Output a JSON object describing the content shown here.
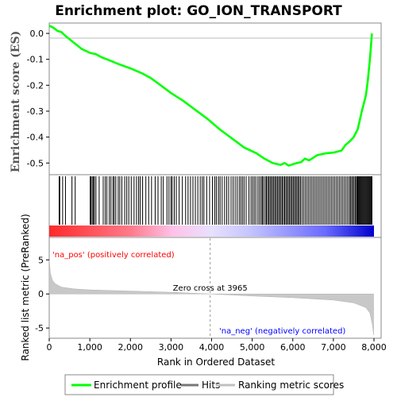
{
  "chart_data": {
    "type": "line",
    "title": "Enrichment plot: GO_ION_TRANSPORT",
    "es_panel": {
      "ylabel": "Enrichment score (ES)",
      "yticks": [
        "0.0",
        "-0.1",
        "-0.2",
        "-0.3",
        "-0.4",
        "-0.5"
      ],
      "ylim": [
        -0.545,
        0.04
      ],
      "series": [
        {
          "name": "Enrichment profile",
          "color": "#00ff00",
          "points": [
            [
              0,
              0.03
            ],
            [
              120,
              0.02
            ],
            [
              200,
              0.01
            ],
            [
              300,
              0.005
            ],
            [
              400,
              -0.01
            ],
            [
              600,
              -0.035
            ],
            [
              800,
              -0.06
            ],
            [
              1000,
              -0.075
            ],
            [
              1150,
              -0.08
            ],
            [
              1300,
              -0.093
            ],
            [
              1500,
              -0.105
            ],
            [
              1700,
              -0.118
            ],
            [
              2000,
              -0.135
            ],
            [
              2300,
              -0.155
            ],
            [
              2500,
              -0.172
            ],
            [
              2700,
              -0.195
            ],
            [
              3000,
              -0.23
            ],
            [
              3300,
              -0.26
            ],
            [
              3600,
              -0.295
            ],
            [
              3900,
              -0.33
            ],
            [
              4200,
              -0.37
            ],
            [
              4500,
              -0.405
            ],
            [
              4800,
              -0.44
            ],
            [
              5100,
              -0.462
            ],
            [
              5300,
              -0.483
            ],
            [
              5500,
              -0.5
            ],
            [
              5700,
              -0.507
            ],
            [
              5800,
              -0.5
            ],
            [
              5900,
              -0.51
            ],
            [
              6100,
              -0.5
            ],
            [
              6200,
              -0.497
            ],
            [
              6300,
              -0.483
            ],
            [
              6400,
              -0.49
            ],
            [
              6500,
              -0.48
            ],
            [
              6600,
              -0.47
            ],
            [
              6800,
              -0.463
            ],
            [
              7000,
              -0.46
            ],
            [
              7200,
              -0.452
            ],
            [
              7300,
              -0.43
            ],
            [
              7400,
              -0.417
            ],
            [
              7500,
              -0.4
            ],
            [
              7600,
              -0.37
            ],
            [
              7700,
              -0.3
            ],
            [
              7800,
              -0.24
            ],
            [
              7850,
              -0.18
            ],
            [
              7900,
              -0.1
            ],
            [
              7950,
              0.0
            ]
          ]
        }
      ]
    },
    "hits": {
      "name": "Hits",
      "color": "#000000",
      "positions": [
        245,
        260,
        330,
        400,
        560,
        640,
        1010,
        1030,
        1060,
        1090,
        1110,
        1150,
        1230,
        1330,
        1380,
        1420,
        1480,
        1520,
        1570,
        1600,
        1640,
        1700,
        1740,
        1790,
        1860,
        1910,
        1960,
        2020,
        2090,
        2150,
        2200,
        2240,
        2300,
        2380,
        2450,
        2520,
        2610,
        2680,
        2760,
        2810,
        2900,
        2950,
        3000,
        3030,
        3080,
        3130,
        3200,
        3280,
        3360,
        3420,
        3480,
        3540,
        3600,
        3660,
        3720,
        3770,
        3810,
        3880,
        3950,
        4020,
        4080,
        4120,
        4170,
        4210,
        4260,
        4320,
        4370,
        4420,
        4480,
        4530,
        4580,
        4630,
        4680,
        4720,
        4760,
        4800,
        4850,
        4920,
        4970,
        5010,
        5050,
        5090,
        5140,
        5180,
        5220,
        5250,
        5280,
        5320,
        5350,
        5380,
        5410,
        5440,
        5470,
        5500,
        5530,
        5560,
        5590,
        5620,
        5650,
        5680,
        5710,
        5740,
        5770,
        5800,
        5830,
        5860,
        5890,
        5920,
        5950,
        5980,
        6010,
        6040,
        6070,
        6100,
        6130,
        6160,
        6190,
        6230,
        6270,
        6310,
        6350,
        6390,
        6430,
        6470,
        6510,
        6550,
        6590,
        6630,
        6670,
        6710,
        6750,
        6790,
        6830,
        6870,
        6910,
        6950,
        6990,
        7030,
        7070,
        7110,
        7150,
        7190,
        7230,
        7270,
        7310,
        7350,
        7390,
        7420,
        7450,
        7480,
        7510,
        7540,
        7570,
        7590,
        7610,
        7630,
        7650,
        7670,
        7690,
        7710,
        7730,
        7750,
        7770,
        7790,
        7810,
        7830,
        7850,
        7870,
        7890,
        7910,
        7930,
        7950
      ]
    },
    "ranking_panel": {
      "name": "Ranking metric scores",
      "ylabel": "Ranked list metric (PreRanked)",
      "yticks": [
        "5",
        "0",
        "-5"
      ],
      "ylim": [
        -6.5,
        8.3
      ],
      "zero_cross_label": "Zero cross at 3965",
      "zero_cross_rank": 3965,
      "pos_label": "'na_pos' (positively correlated)",
      "neg_label": "'na_neg' (negatively correlated)",
      "curve": [
        [
          0,
          5.0
        ],
        [
          30,
          3.0
        ],
        [
          80,
          2.0
        ],
        [
          150,
          1.5
        ],
        [
          300,
          1.0
        ],
        [
          600,
          0.75
        ],
        [
          1000,
          0.6
        ],
        [
          2000,
          0.42
        ],
        [
          3000,
          0.25
        ],
        [
          3965,
          0.0
        ],
        [
          5000,
          -0.3
        ],
        [
          6000,
          -0.55
        ],
        [
          7000,
          -0.9
        ],
        [
          7500,
          -1.3
        ],
        [
          7800,
          -2.0
        ],
        [
          7900,
          -2.8
        ],
        [
          7960,
          -4.5
        ],
        [
          7990,
          -6.0
        ]
      ]
    },
    "x_axis": {
      "label": "Rank in Ordered Dataset",
      "ticks": [
        "0",
        "1,000",
        "2,000",
        "3,000",
        "4,000",
        "5,000",
        "6,000",
        "7,000",
        "8,000"
      ],
      "xlim": [
        0,
        8000
      ]
    },
    "legend": {
      "placement": "bottom",
      "items": [
        {
          "label": "Enrichment profile",
          "color": "#00ff00"
        },
        {
          "label": "Hits",
          "color": "#777777"
        },
        {
          "label": "Ranking metric scores",
          "color": "#c0c0c0"
        }
      ]
    },
    "colors": {
      "positive": "#ff0000",
      "negative": "#0000ff",
      "pos_text": "#ff0000",
      "neg_text": "#0000ff"
    }
  }
}
